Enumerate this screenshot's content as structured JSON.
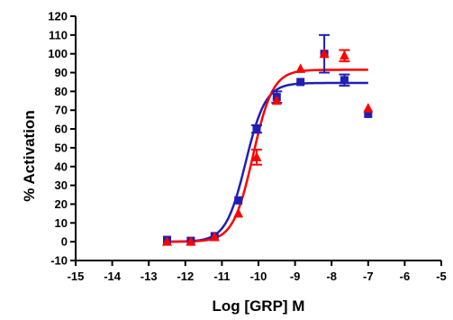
{
  "chart_data": {
    "type": "scatter",
    "xlabel": "Log [GRP] M",
    "ylabel": "% Activation",
    "xlim": [
      -15,
      -5
    ],
    "ylim": [
      -10,
      120
    ],
    "x_ticks": [
      -15,
      -14,
      -13,
      -12,
      -11,
      -10,
      -9,
      -8,
      -7,
      -6,
      -5
    ],
    "y_ticks": [
      -10,
      0,
      10,
      20,
      30,
      40,
      50,
      60,
      70,
      80,
      90,
      100,
      110,
      120
    ],
    "x_tick_labels": [
      "-15",
      "-14",
      "-13",
      "-12",
      "-11",
      "-10",
      "-9",
      "-8",
      "-7",
      "-6",
      "-5"
    ],
    "y_tick_labels": [
      "-10",
      "0",
      "10",
      "20",
      "30",
      "40",
      "50",
      "60",
      "70",
      "80",
      "90",
      "100",
      "110",
      "120"
    ],
    "grid": false,
    "series": [
      {
        "marker": "square",
        "color": "#1f1fb4",
        "points": [
          {
            "x": -12.5,
            "y": 1,
            "err": 0
          },
          {
            "x": -11.85,
            "y": 0.5,
            "err": 0
          },
          {
            "x": -11.2,
            "y": 3,
            "err": 0
          },
          {
            "x": -10.55,
            "y": 22,
            "err": 0
          },
          {
            "x": -10.05,
            "y": 60,
            "err": 2
          },
          {
            "x": -9.5,
            "y": 77,
            "err": 3
          },
          {
            "x": -8.85,
            "y": 85,
            "err": 0
          },
          {
            "x": -8.2,
            "y": 100,
            "err": 10
          },
          {
            "x": -7.65,
            "y": 86,
            "err": 3
          },
          {
            "x": -7.0,
            "y": 68,
            "err": 0
          }
        ],
        "fit": {
          "bottom": 0,
          "top": 84.5,
          "logEC50": -10.35,
          "hill": 1.6,
          "x_range": [
            -12.5,
            -7.0
          ]
        }
      },
      {
        "marker": "triangle",
        "color": "#ff0000",
        "points": [
          {
            "x": -12.5,
            "y": 0,
            "err": 0
          },
          {
            "x": -11.85,
            "y": 0,
            "err": 0
          },
          {
            "x": -11.2,
            "y": 2.5,
            "err": 0
          },
          {
            "x": -10.55,
            "y": 15,
            "err": 0
          },
          {
            "x": -10.05,
            "y": 45,
            "err": 4
          },
          {
            "x": -9.5,
            "y": 75,
            "err": 0
          },
          {
            "x": -8.85,
            "y": 92,
            "err": 0
          },
          {
            "x": -8.2,
            "y": 100,
            "err": 0
          },
          {
            "x": -7.65,
            "y": 99,
            "err": 3
          },
          {
            "x": -7.0,
            "y": 71,
            "err": 0
          }
        ],
        "fit": {
          "bottom": 0,
          "top": 91.5,
          "logEC50": -10.15,
          "hill": 1.6,
          "x_range": [
            -12.5,
            -7.0
          ]
        }
      }
    ]
  }
}
